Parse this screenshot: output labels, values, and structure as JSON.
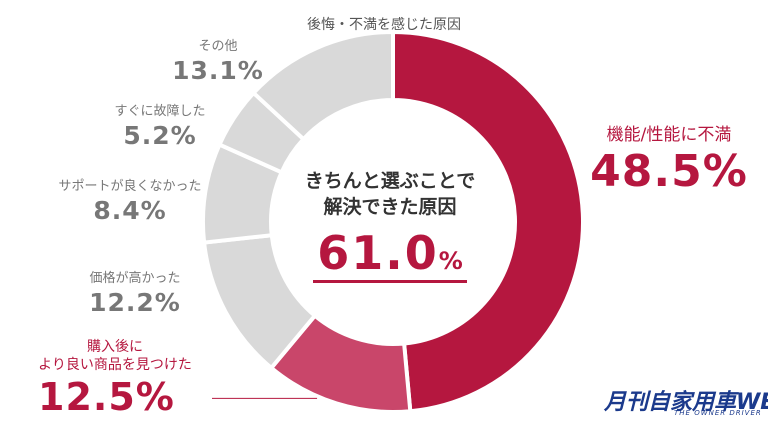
{
  "title": "後悔・不満を感じた原因",
  "center": {
    "line1": "きちんと選ぶことで",
    "line2": "解決できた原因",
    "value": "61.0",
    "unit": "%"
  },
  "chart_data": {
    "type": "pie",
    "title": "後悔・不満を感じた原因",
    "unit": "%",
    "slices": [
      {
        "label": "機能/性能に不満",
        "value": 48.5,
        "display": "48.5%",
        "color": "#b5173f",
        "highlight": true
      },
      {
        "label": "購入後により良い商品を見つけた",
        "line1": "購入後に",
        "line2": "より良い商品を見つけた",
        "value": 12.5,
        "display": "12.5%",
        "color": "#c9466a",
        "highlight": true
      },
      {
        "label": "価格が高かった",
        "value": 12.2,
        "display": "12.2%",
        "color": "#d9d9d9"
      },
      {
        "label": "サポートが良くなかった",
        "value": 8.4,
        "display": "8.4%",
        "color": "#d9d9d9"
      },
      {
        "label": "すぐに故障した",
        "value": 5.2,
        "display": "5.2%",
        "color": "#d9d9d9"
      },
      {
        "label": "その他",
        "value": 13.1,
        "display": "13.1%",
        "color": "#d9d9d9"
      }
    ]
  },
  "logo": {
    "text": "月刊自家用車WEB",
    "sub": "THE OWNER DRIVER"
  }
}
